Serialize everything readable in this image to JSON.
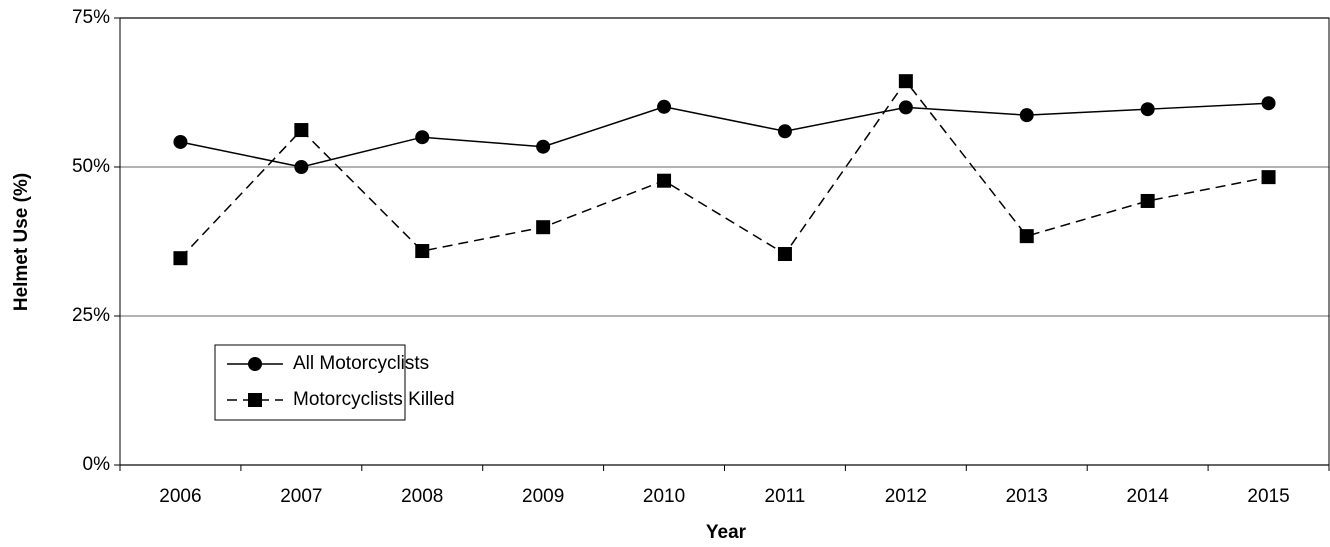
{
  "chart_data": {
    "type": "line",
    "x_label": "Year",
    "y_label": "Helmet Use (%)",
    "categories": [
      "2006",
      "2007",
      "2008",
      "2009",
      "2010",
      "2011",
      "2012",
      "2013",
      "2014",
      "2015"
    ],
    "series": [
      {
        "name": "All Motorcyclists",
        "color": "#000000",
        "marker": "circle",
        "dash": "solid",
        "values": [
          54.2,
          50.0,
          55.0,
          53.4,
          60.1,
          56.0,
          60.0,
          58.7,
          59.7,
          60.7
        ]
      },
      {
        "name": "Motorcyclists Killed",
        "color": "#000000",
        "marker": "square",
        "dash": "dashed",
        "values": [
          34.7,
          56.2,
          35.9,
          39.9,
          47.7,
          35.4,
          64.4,
          38.4,
          44.3,
          48.3
        ]
      }
    ],
    "ylim": [
      0,
      75
    ],
    "yticks": [
      {
        "value": 0,
        "label": "0%"
      },
      {
        "value": 25,
        "label": "25%"
      },
      {
        "value": 50,
        "label": "50%"
      },
      {
        "value": 75,
        "label": "75%"
      }
    ],
    "grid": true,
    "legend": "lower left"
  }
}
